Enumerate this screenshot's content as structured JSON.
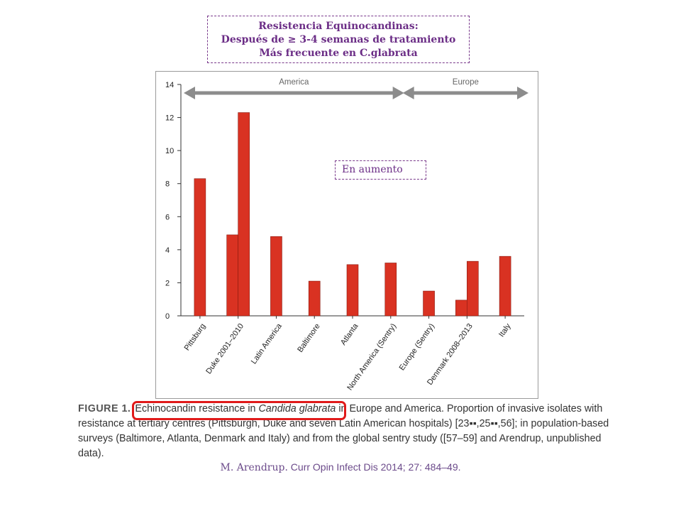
{
  "slide": {
    "title_lines": [
      "Resistencia Equinocandinas:",
      "Después de ≥ 3-4 semanas de tratamiento",
      "Más frecuente en C.glabrata"
    ],
    "annotation": "En aumento",
    "caption": {
      "figure_label": "FIGURE 1.",
      "text_before": "Echinocandin resistance in ",
      "species": "Candida glabrata",
      "text_after": " in Europe and America. Proportion of invasive isolates with resistance at tertiary centres (Pittsburgh, Duke and seven Latin American hospitals) [23▪▪,25▪▪,56]; in population-based surveys (Baltimore, Atlanta, Denmark and Italy) and from the global sentry study ([57–59] and Arendrup, unpublished data)."
    },
    "citation": {
      "author": "M. Arendrup.",
      "journal": " Curr Opin Infect Dis 2014; 27: 484–49."
    },
    "colors": {
      "bar": "#d93222",
      "bar_stroke": "#8a1a10",
      "arrow": "#8c8c8c",
      "title_text": "#6b2d86",
      "highlight": "#e01a1a"
    }
  },
  "chart_data": {
    "type": "bar",
    "title": "",
    "xlabel": "",
    "ylabel": "",
    "ylim": [
      0,
      14
    ],
    "yticks": [
      0,
      2,
      4,
      6,
      8,
      10,
      12,
      14
    ],
    "grid": false,
    "categories": [
      "Pittsburg",
      "Duke 2001–2010",
      "Latin America",
      "Baltimore",
      "Atlanta",
      "North America (Sentry)",
      "Europe (Sentry)",
      "Denmark 2008–2013",
      "Italy"
    ],
    "values": [
      [
        8.3
      ],
      [
        4.9,
        12.3
      ],
      [
        4.8
      ],
      [
        2.1
      ],
      [
        3.1
      ],
      [
        3.2
      ],
      [
        1.5
      ],
      [
        0.95,
        3.3
      ],
      [
        3.6
      ]
    ],
    "regions": [
      {
        "label": "America",
        "from": 0,
        "to": 5
      },
      {
        "label": "Europe",
        "from": 6,
        "to": 8
      }
    ]
  }
}
